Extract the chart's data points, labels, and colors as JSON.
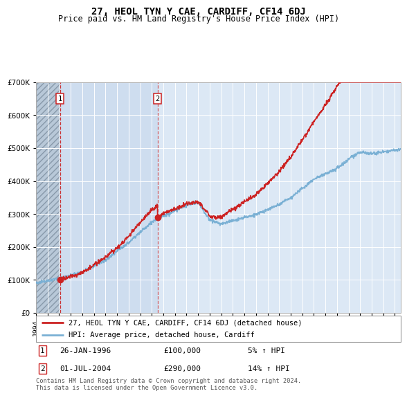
{
  "title": "27, HEOL TYN Y CAE, CARDIFF, CF14 6DJ",
  "subtitle": "Price paid vs. HM Land Registry's House Price Index (HPI)",
  "legend_line1": "27, HEOL TYN Y CAE, CARDIFF, CF14 6DJ (detached house)",
  "legend_line2": "HPI: Average price, detached house, Cardiff",
  "transaction1_date": 1996.07,
  "transaction1_price": 100000,
  "transaction2_date": 2004.5,
  "transaction2_price": 290000,
  "footer": "Contains HM Land Registry data © Crown copyright and database right 2024.\nThis data is licensed under the Open Government Licence v3.0.",
  "hpi_color": "#7ab0d4",
  "price_color": "#cc2222",
  "bg_color": "#dce8f5",
  "bg_hatch_color": "#c0ccd8",
  "bg_between_color": "#d0e0ef",
  "ylim": [
    0,
    700000
  ],
  "xlim_start": 1994.0,
  "xlim_end": 2025.5
}
